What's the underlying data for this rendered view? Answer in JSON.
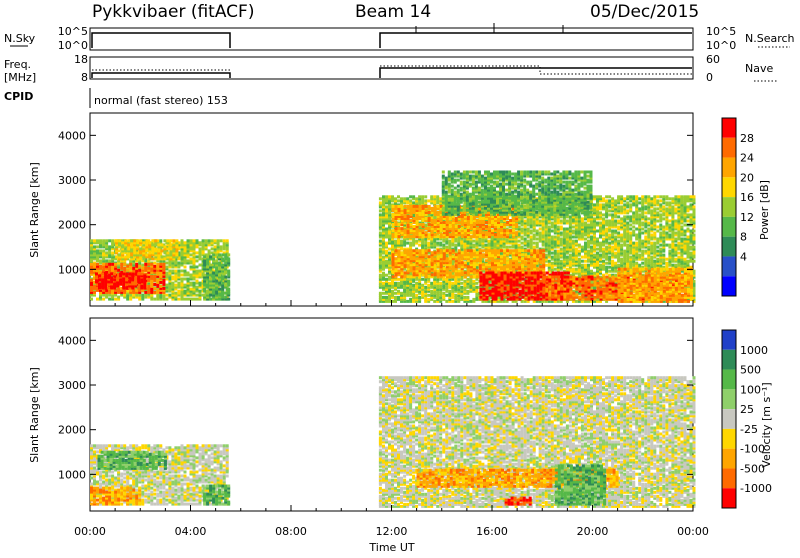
{
  "header": {
    "radar": "Pykkvibaer (fitACF)",
    "beam": "Beam 14",
    "date": "05/Dec/2015"
  },
  "panels": {
    "nsky_label": "N.Sky",
    "nsky_ticks": [
      "10^5",
      "10^0"
    ],
    "nsearch_label": "N.Search",
    "nsearch_ticks": [
      "10^5",
      "10^0"
    ],
    "freq_label_line1": "Freq.",
    "freq_label_line2": "[MHz]",
    "freq_ticks": [
      "18",
      "8"
    ],
    "nave_label": "Nave",
    "nave_ticks": [
      "60",
      "0"
    ],
    "cpid_label": "CPID",
    "cpid_text": "normal (fast stereo) 153"
  },
  "colorbars": {
    "power": {
      "label": "Power [dB]",
      "ticks": [
        "28",
        "24",
        "20",
        "16",
        "12",
        "8",
        "4"
      ],
      "colors": [
        "#ff0000",
        "#ff6a00",
        "#ffa500",
        "#ffd700",
        "#9acd32",
        "#55b848",
        "#2e8b57",
        "#2850c8",
        "#0000ff"
      ]
    },
    "velocity": {
      "label": "Velocity [m s⁻¹]",
      "ticks": [
        "1000",
        "500",
        "100",
        "25",
        "-25",
        "-100",
        "-500",
        "-1000"
      ],
      "colors": [
        "#2040c8",
        "#2e8b57",
        "#55b848",
        "#8fcf6a",
        "#c8c8c0",
        "#ffd700",
        "#ffa500",
        "#ff6a00",
        "#ff0000"
      ]
    }
  },
  "chart_data": [
    {
      "type": "heatmap",
      "panel": "power",
      "ylabel": "Slant Range [km]",
      "xlabel": "Time UT",
      "y_ticks": [
        1000,
        2000,
        3000,
        4000
      ],
      "ylim": [
        180,
        4500
      ],
      "x_ticks": [
        "00:00",
        "04:00",
        "08:00",
        "12:00",
        "16:00",
        "20:00",
        "00:00"
      ],
      "xlim_hours": [
        0,
        24
      ],
      "blobs": [
        {
          "t0": 0.0,
          "t1": 5.5,
          "r0": 300,
          "r1": 1650,
          "level": 4
        },
        {
          "t0": 0.0,
          "t1": 3.0,
          "r0": 450,
          "r1": 1100,
          "level": 7
        },
        {
          "t0": 0.2,
          "t1": 2.2,
          "r0": 550,
          "r1": 900,
          "level": 8
        },
        {
          "t0": 1.0,
          "t1": 3.5,
          "r0": 1200,
          "r1": 1650,
          "level": 5
        },
        {
          "t0": 4.5,
          "t1": 5.5,
          "r0": 300,
          "r1": 1300,
          "level": 3
        },
        {
          "t0": 11.5,
          "t1": 24.0,
          "r0": 250,
          "r1": 2600,
          "level": 4
        },
        {
          "t0": 12.0,
          "t1": 17.0,
          "r0": 1700,
          "r1": 2400,
          "level": 6
        },
        {
          "t0": 12.0,
          "t1": 18.0,
          "r0": 800,
          "r1": 1400,
          "level": 6
        },
        {
          "t0": 15.5,
          "t1": 19.0,
          "r0": 300,
          "r1": 900,
          "level": 8
        },
        {
          "t0": 18.0,
          "t1": 23.5,
          "r0": 300,
          "r1": 800,
          "level": 7
        },
        {
          "t0": 14.0,
          "t1": 20.0,
          "r0": 2200,
          "r1": 3150,
          "level": 3
        },
        {
          "t0": 21.0,
          "t1": 24.0,
          "r0": 250,
          "r1": 1000,
          "level": 6
        }
      ]
    },
    {
      "type": "heatmap",
      "panel": "velocity",
      "ylabel": "Slant Range [km]",
      "xlabel": "Time UT",
      "y_ticks": [
        1000,
        2000,
        3000,
        4000
      ],
      "ylim": [
        180,
        4500
      ],
      "x_ticks": [
        "00:00",
        "04:00",
        "08:00",
        "12:00",
        "16:00",
        "20:00",
        "00:00"
      ],
      "xlim_hours": [
        0,
        24
      ],
      "blobs": [
        {
          "t0": 0.0,
          "t1": 5.5,
          "r0": 300,
          "r1": 1650,
          "level": 4
        },
        {
          "t0": 0.3,
          "t1": 3.0,
          "r0": 1100,
          "r1": 1500,
          "level": 6
        },
        {
          "t0": 4.5,
          "t1": 5.5,
          "r0": 300,
          "r1": 750,
          "level": 6
        },
        {
          "t0": 0.0,
          "t1": 2.0,
          "r0": 300,
          "r1": 700,
          "level": 2
        },
        {
          "t0": 11.5,
          "t1": 24.0,
          "r0": 250,
          "r1": 3150,
          "level": 4
        },
        {
          "t0": 13.0,
          "t1": 21.0,
          "r0": 700,
          "r1": 1100,
          "level": 2
        },
        {
          "t0": 16.5,
          "t1": 17.5,
          "r0": 300,
          "r1": 450,
          "level": 0
        },
        {
          "t0": 18.5,
          "t1": 20.5,
          "r0": 300,
          "r1": 1200,
          "level": 6
        }
      ]
    }
  ]
}
